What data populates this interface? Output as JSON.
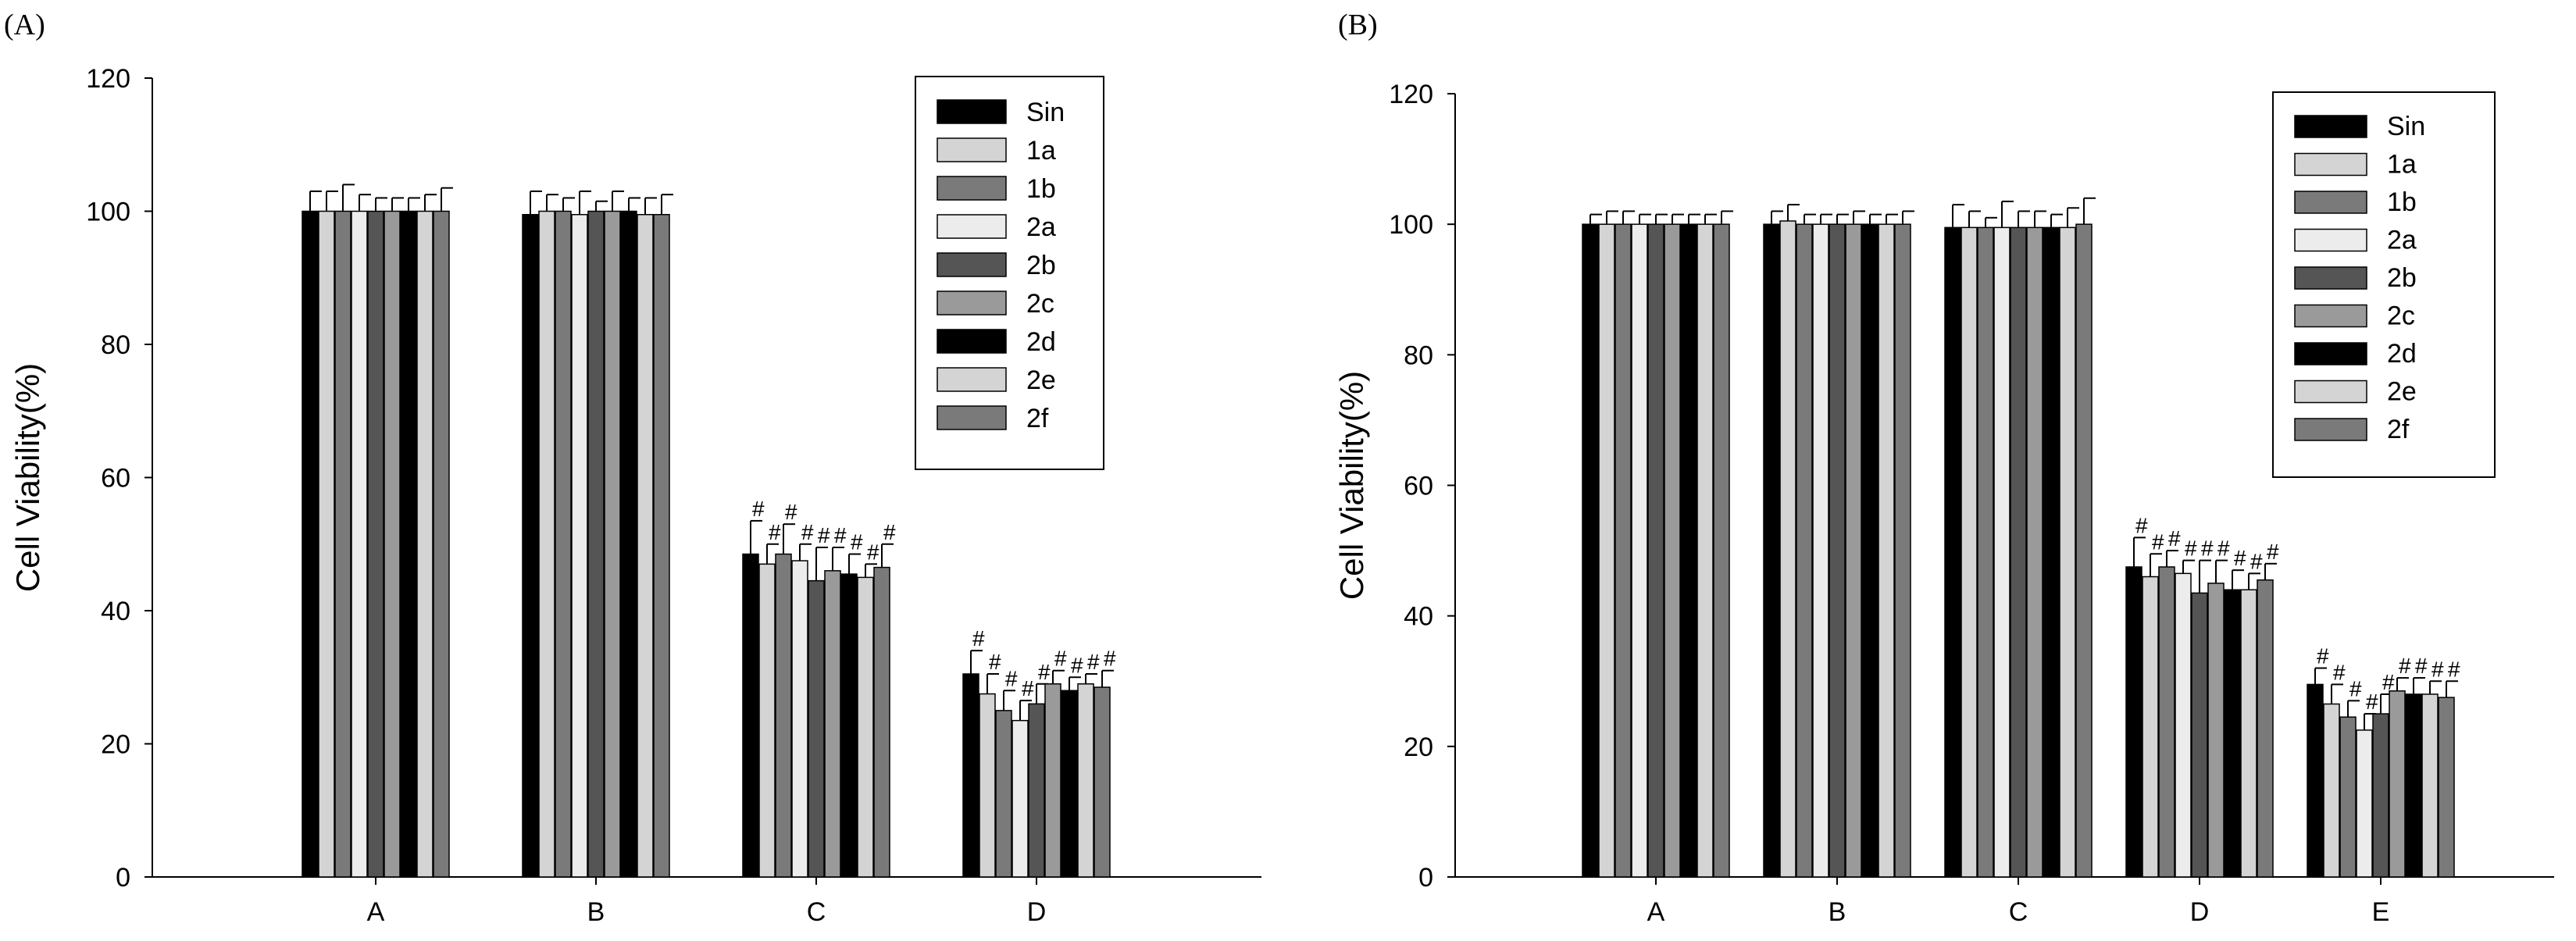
{
  "chart_data": [
    {
      "type": "bar",
      "panel_label": "(A)",
      "title": "",
      "xlabel": "",
      "ylabel": "Cell Viability(%)",
      "ylim": [
        0,
        120
      ],
      "yticks": [
        "0",
        "20",
        "40",
        "60",
        "80",
        "100",
        "120"
      ],
      "categories": [
        "A",
        "B",
        "C",
        "D"
      ],
      "significance_marker": "#",
      "significant_categories": [
        "C",
        "D"
      ],
      "legend_position": "top-right",
      "series": [
        {
          "name": "Sin",
          "color": "#000000",
          "values": [
            100.0,
            99.5,
            48.5,
            30.5
          ],
          "errors": [
            3.0,
            3.5,
            5.0,
            3.5
          ]
        },
        {
          "name": "1a",
          "color": "#d4d4d4",
          "values": [
            100.0,
            100.0,
            47.0,
            27.5
          ],
          "errors": [
            3.0,
            2.5,
            3.0,
            3.0
          ]
        },
        {
          "name": "1b",
          "color": "#7a7a7a",
          "values": [
            100.0,
            100.0,
            48.5,
            25.0
          ],
          "errors": [
            4.0,
            2.0,
            4.5,
            3.0
          ]
        },
        {
          "name": "2a",
          "color": "#ececec",
          "values": [
            100.0,
            99.5,
            47.5,
            23.5
          ],
          "errors": [
            2.5,
            3.5,
            2.5,
            3.0
          ]
        },
        {
          "name": "2b",
          "color": "#555555",
          "values": [
            100.0,
            100.0,
            44.5,
            26.0
          ],
          "errors": [
            2.0,
            1.5,
            5.0,
            3.0
          ]
        },
        {
          "name": "2c",
          "color": "#9a9a9a",
          "values": [
            100.0,
            100.0,
            46.0,
            29.0
          ],
          "errors": [
            2.0,
            3.0,
            3.5,
            2.0
          ]
        },
        {
          "name": "2d",
          "color": "#000000",
          "values": [
            100.0,
            100.0,
            45.5,
            28.0
          ],
          "errors": [
            2.0,
            2.0,
            3.0,
            2.0
          ]
        },
        {
          "name": "2e",
          "color": "#d4d4d4",
          "values": [
            100.0,
            99.5,
            45.0,
            29.0
          ],
          "errors": [
            2.5,
            2.5,
            2.0,
            1.5
          ]
        },
        {
          "name": "2f",
          "color": "#7a7a7a",
          "values": [
            100.0,
            99.5,
            46.5,
            28.5
          ],
          "errors": [
            3.5,
            3.0,
            3.5,
            2.5
          ]
        }
      ]
    },
    {
      "type": "bar",
      "panel_label": "(B)",
      "title": "",
      "xlabel": "",
      "ylabel": "Cell Viability(%)",
      "ylim": [
        0,
        120
      ],
      "yticks": [
        "0",
        "20",
        "40",
        "60",
        "80",
        "100",
        "120"
      ],
      "categories": [
        "A",
        "B",
        "C",
        "D",
        "E"
      ],
      "significance_marker": "#",
      "significant_categories": [
        "D",
        "E"
      ],
      "legend_position": "top-right",
      "series": [
        {
          "name": "Sin",
          "color": "#000000",
          "values": [
            100.0,
            100.0,
            99.5,
            47.5,
            29.5
          ],
          "errors": [
            1.5,
            2.0,
            3.5,
            4.5,
            2.5
          ]
        },
        {
          "name": "1a",
          "color": "#d4d4d4",
          "values": [
            100.0,
            100.5,
            99.5,
            46.0,
            26.5
          ],
          "errors": [
            2.0,
            2.5,
            2.5,
            3.5,
            3.0
          ]
        },
        {
          "name": "1b",
          "color": "#7a7a7a",
          "values": [
            100.0,
            100.0,
            99.5,
            47.5,
            24.5
          ],
          "errors": [
            2.0,
            1.5,
            1.5,
            2.5,
            2.5
          ]
        },
        {
          "name": "2a",
          "color": "#ececec",
          "values": [
            100.0,
            100.0,
            99.5,
            46.5,
            22.5
          ],
          "errors": [
            1.5,
            1.5,
            4.0,
            2.0,
            2.5
          ]
        },
        {
          "name": "2b",
          "color": "#555555",
          "values": [
            100.0,
            100.0,
            99.5,
            43.5,
            25.0
          ],
          "errors": [
            1.5,
            1.5,
            2.5,
            5.0,
            3.0
          ]
        },
        {
          "name": "2c",
          "color": "#9a9a9a",
          "values": [
            100.0,
            100.0,
            99.5,
            45.0,
            28.5
          ],
          "errors": [
            1.5,
            2.0,
            2.5,
            3.5,
            2.0
          ]
        },
        {
          "name": "2d",
          "color": "#000000",
          "values": [
            100.0,
            100.0,
            99.5,
            44.0,
            28.0
          ],
          "errors": [
            1.5,
            1.5,
            2.0,
            3.0,
            2.5
          ]
        },
        {
          "name": "2e",
          "color": "#d4d4d4",
          "values": [
            100.0,
            100.0,
            99.5,
            44.0,
            28.0
          ],
          "errors": [
            1.5,
            1.5,
            3.0,
            2.5,
            2.0
          ]
        },
        {
          "name": "2f",
          "color": "#7a7a7a",
          "values": [
            100.0,
            100.0,
            100.0,
            45.5,
            27.5
          ],
          "errors": [
            2.0,
            2.0,
            4.0,
            2.5,
            2.5
          ]
        }
      ]
    }
  ]
}
